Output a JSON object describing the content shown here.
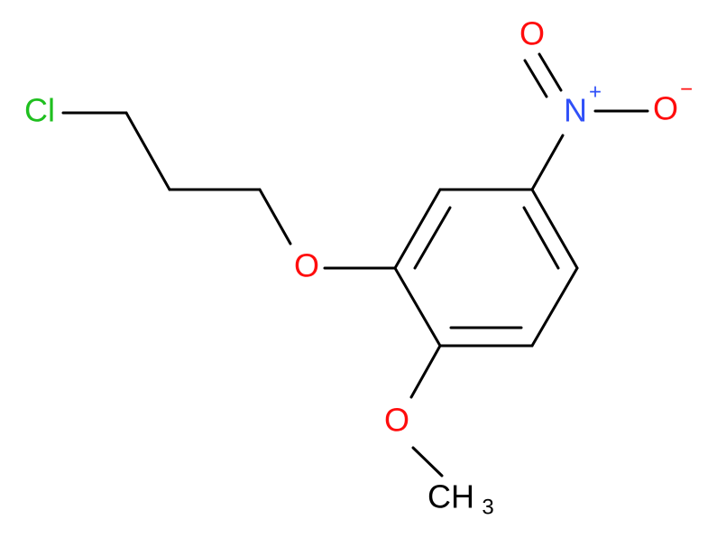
{
  "atoms": [
    {
      "label": "Cl"
    },
    {
      "label": "O"
    },
    {
      "label": "N",
      "charge": "+"
    },
    {
      "label": "O"
    },
    {
      "label": "O",
      "charge": "−"
    },
    {
      "label": "O"
    },
    {
      "label": "CH",
      "subscript": "3"
    }
  ]
}
